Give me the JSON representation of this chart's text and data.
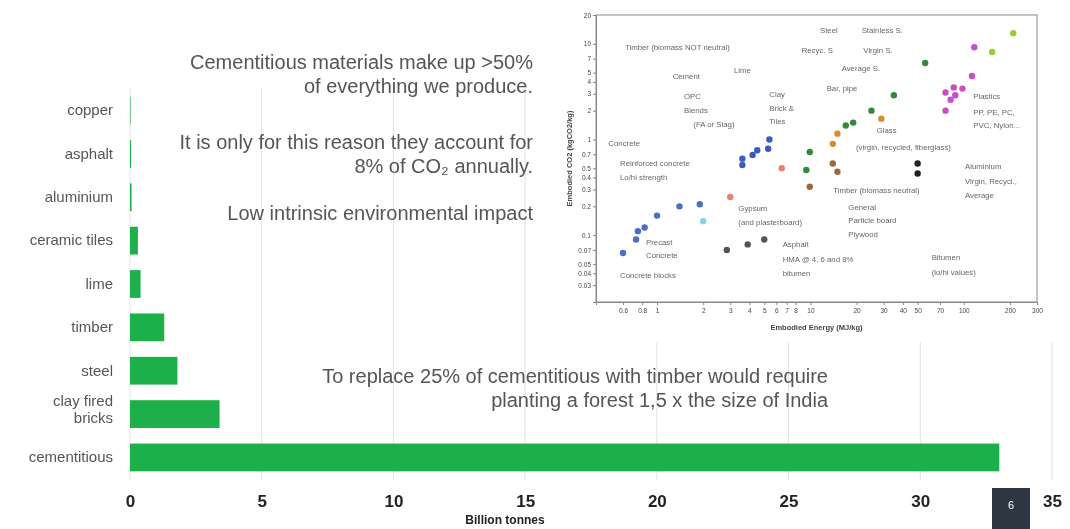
{
  "chart_data": [
    {
      "type": "bar",
      "orientation": "horizontal",
      "categories": [
        "copper",
        "asphalt",
        "aluminium",
        "ceramic tiles",
        "lime",
        "timber",
        "steel",
        "clay fired bricks",
        "cementitious"
      ],
      "values": [
        0.02,
        0.04,
        0.06,
        0.3,
        0.4,
        1.3,
        1.8,
        3.4,
        33
      ],
      "color": "#1db04a",
      "xlim": [
        0,
        35
      ],
      "xticks": [
        0,
        5,
        10,
        15,
        20,
        25,
        30,
        35
      ],
      "xlabel": "Billion tonnes",
      "grid": "x",
      "annotations": [
        "Cementitious materials make up >50% of everything we produce.",
        "It is only for this reason they account for 8% of CO₂ annually.",
        "Low intrinsic environmental impact",
        "To replace 25% of cementitious with timber would require planting a forest 1,5 x the size of India",
        "6"
      ]
    },
    {
      "type": "scatter",
      "log": "xy",
      "marker": "circle",
      "xlabel": "Embodied Energy (MJ/kg)",
      "ylabel": "Embodied CO2 (kgCO2/kg)",
      "xlim": [
        0.4,
        300
      ],
      "ylim": [
        0.02,
        20
      ],
      "xticks": [
        0.6,
        0.8,
        1,
        2,
        3,
        4,
        5,
        6,
        7,
        8,
        10,
        20,
        30,
        40,
        50,
        70,
        100,
        200,
        300
      ],
      "yticks": [
        0.03,
        0.04,
        0.05,
        0.07,
        0.1,
        0.2,
        0.3,
        0.4,
        0.5,
        0.7,
        1,
        2,
        3,
        4,
        5,
        7,
        10,
        20
      ],
      "series": [
        {
          "color": "#4a6fc4",
          "x": [
            0.6,
            0.73,
            0.75,
            0.83,
            1.0,
            1.4,
            1.9
          ],
          "values": [
            0.065,
            0.09,
            0.11,
            0.12,
            0.16,
            0.2,
            0.21
          ]
        },
        {
          "color": "#3b5cb8",
          "x": [
            3.6,
            3.6,
            4.2,
            4.5,
            5.4,
            5.3
          ],
          "values": [
            0.54,
            0.63,
            0.69,
            0.77,
            1.0,
            0.8
          ]
        },
        {
          "color": "#e8826e",
          "x": [
            3.0,
            6.5
          ],
          "values": [
            0.25,
            0.5
          ]
        },
        {
          "color": "#7fd6e0",
          "x": [
            2.0
          ],
          "values": [
            0.14
          ]
        },
        {
          "color": "#555555",
          "x": [
            2.85,
            3.9,
            5.0
          ],
          "values": [
            0.07,
            0.08,
            0.09
          ]
        },
        {
          "color": "#2f8a3a",
          "x": [
            9.4,
            9.9,
            17,
            19,
            25,
            35,
            56
          ],
          "values": [
            0.48,
            0.74,
            1.4,
            1.5,
            2.0,
            2.9,
            6.3
          ]
        },
        {
          "color": "#d98a2b",
          "x": [
            14,
            15,
            29
          ],
          "values": [
            0.9,
            1.15,
            1.65
          ]
        },
        {
          "color": "#9b6a3c",
          "x": [
            9.9,
            15,
            14
          ],
          "values": [
            0.32,
            0.46,
            0.56
          ]
        },
        {
          "color": "#222222",
          "x": [
            50,
            50
          ],
          "values": [
            0.56,
            0.44
          ]
        },
        {
          "color": "#9acd32",
          "x": [
            153,
            210
          ],
          "values": [
            8.2,
            12.9
          ]
        },
        {
          "color": "#c94fc9",
          "x": [
            117,
            113,
            98,
            86,
            76,
            88,
            82,
            76
          ],
          "values": [
            9.2,
            4.6,
            3.4,
            3.5,
            3.1,
            2.9,
            2.6,
            2.0
          ]
        }
      ],
      "annotations": [
        "Steel",
        "Stainless S.",
        "Timber (biomass NOT neutral)",
        "Recyc. S",
        "Virgin S.",
        "Average S.",
        "Cement",
        "Lime",
        "Clay",
        "Brick &",
        "Tiles",
        "Bar, pipe",
        "Plastics",
        "PP, PE, PC,",
        "PVC, Nylon...",
        "OPC",
        "Blends",
        "(FA or Slag)",
        "Glass",
        "(virgin, recycled, fiberglass)",
        "Concrete",
        "Reinforced concrete",
        "Lo/hi strength",
        "Aluminium",
        "Virgin, Recycl.,",
        "Average",
        "Timber (biomass neutral)",
        "General",
        "Particle board",
        "Plywood",
        "Gypsum",
        "(and plasterboard)",
        "Precast",
        "Concrete",
        "Asphalt",
        "HMA @ 4, 6 and 8%",
        "bitumen",
        "Bitumen",
        "(lo/hi values)",
        "Concrete blocks"
      ]
    }
  ]
}
